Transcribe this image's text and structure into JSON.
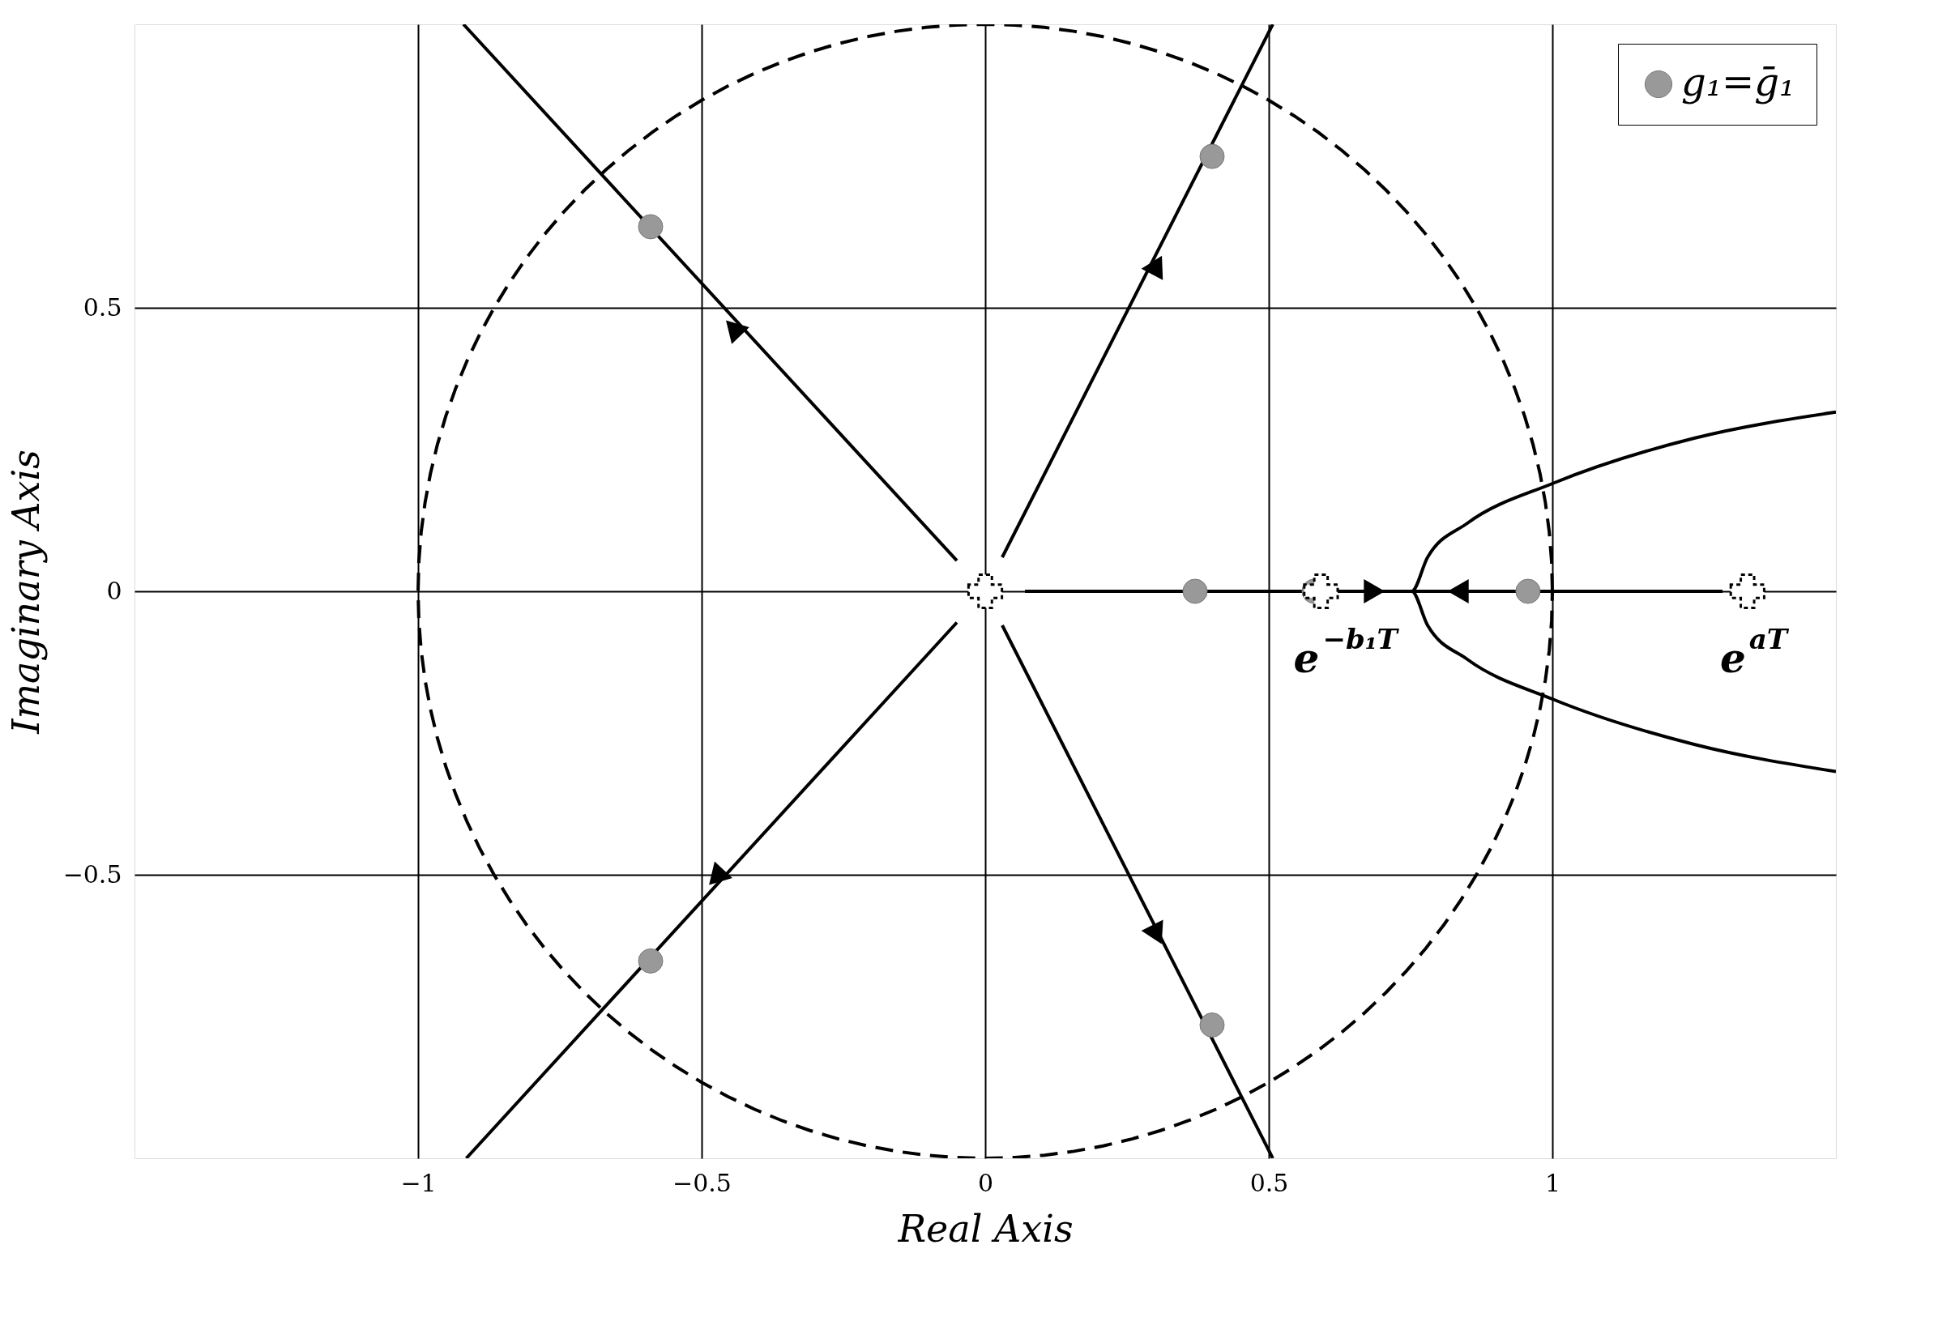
{
  "chart_data": {
    "type": "line",
    "xlabel": "Real Axis",
    "ylabel": "Imaginary Axis",
    "xlim": [
      -1.5,
      1.5
    ],
    "ylim": [
      -1,
      1
    ],
    "xticks": [
      {
        "value": -1,
        "label": "−1"
      },
      {
        "value": -0.5,
        "label": "−0.5"
      },
      0,
      0.5,
      1
    ],
    "yticks": [
      {
        "value": -0.5,
        "label": "−0.5"
      },
      0,
      0.5
    ],
    "grid": true,
    "legend": "top right",
    "series": [
      {
        "color": "#000000",
        "line_style": "solid",
        "x": [
          0.03,
          0.507
        ],
        "values": [
          0.06,
          1
        ]
      },
      {
        "color": "#000000",
        "line_style": "solid",
        "x": [
          0.03,
          0.507
        ],
        "values": [
          -0.06,
          -1
        ]
      },
      {
        "color": "#000000",
        "line_style": "solid",
        "x": [
          -0.05,
          -0.92
        ],
        "values": [
          0.054,
          1
        ]
      },
      {
        "color": "#000000",
        "line_style": "solid",
        "x": [
          -0.05,
          -0.915
        ],
        "values": [
          -0.055,
          -1
        ]
      },
      {
        "color": "#000000",
        "line_style": "solid",
        "x": [
          0.07,
          1.3
        ],
        "values": [
          0,
          0
        ]
      },
      {
        "color": "#000000",
        "line_style": "solid",
        "x": [
          1.5,
          1.25,
          1.0,
          0.85,
          0.78,
          0.752,
          0.78,
          0.85,
          1.0,
          1.25,
          1.5
        ],
        "values": [
          0.316,
          0.27,
          0.19,
          0.12,
          0.06,
          0,
          -0.06,
          -0.12,
          -0.19,
          -0.27,
          -0.318
        ]
      },
      {
        "type": "scatter",
        "name": "g₁=ḡ₁",
        "color": "#999999",
        "marker": "circle",
        "x": [
          -0.59,
          0.4,
          0.4,
          -0.59,
          0.37,
          0.58,
          0.957
        ],
        "values": [
          0.643,
          0.767,
          -0.765,
          -0.652,
          0,
          0,
          0
        ]
      },
      {
        "type": "scatter",
        "color": "#ffffff",
        "marker": "cross",
        "x": [
          0,
          0.592,
          1.344
        ],
        "values": [
          0,
          0,
          0
        ]
      },
      {
        "type": "scatter",
        "color": "#000000",
        "marker": "triangle",
        "x": [
          0.3,
          -0.44,
          -0.47,
          0.3,
          0.68,
          0.84
        ],
        "values": [
          0.57,
          0.46,
          -0.5,
          -0.6,
          0,
          0
        ]
      }
    ],
    "annotations": [
      "e$^{−b₁T}$",
      "e$^{aT}$"
    ]
  }
}
